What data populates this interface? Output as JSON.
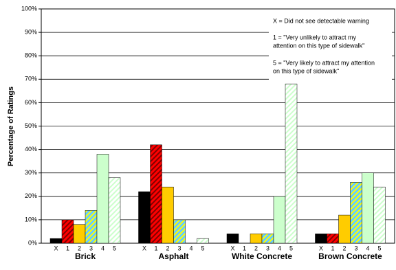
{
  "chart_data": {
    "type": "bar",
    "y_label": "Percentage of Ratings",
    "categories": [
      "Brick",
      "Asphalt",
      "White Concrete",
      "Brown Concrete"
    ],
    "series": [
      {
        "name": "X",
        "color": "#000000",
        "values": [
          2,
          22,
          4,
          4
        ]
      },
      {
        "name": "1",
        "color": "#ff0000",
        "hatch": "#800000",
        "values": [
          10,
          42,
          0,
          4
        ]
      },
      {
        "name": "2",
        "color": "#ffcc00",
        "values": [
          8,
          24,
          4,
          12
        ]
      },
      {
        "name": "3",
        "color": "#66ccff",
        "hatch": "#ffff00",
        "values": [
          14,
          10,
          4,
          26
        ]
      },
      {
        "name": "4",
        "color": "#ccffcc",
        "values": [
          38,
          0,
          20,
          30
        ]
      },
      {
        "name": "5",
        "color": "#ffffff",
        "hatch": "#ccffcc",
        "values": [
          28,
          2,
          68,
          24
        ]
      }
    ],
    "ylim": [
      0,
      100
    ],
    "yticks": [
      {
        "value": 0,
        "label": "0%"
      },
      {
        "value": 10,
        "label": "10%"
      },
      {
        "value": 20,
        "label": "20%"
      },
      {
        "value": 30,
        "label": "30%"
      },
      {
        "value": 40,
        "label": "40%"
      },
      {
        "value": 50,
        "label": "50%"
      },
      {
        "value": 60,
        "label": "60%"
      },
      {
        "value": 70,
        "label": "70%"
      },
      {
        "value": 80,
        "label": "80%"
      },
      {
        "value": 90,
        "label": "90%"
      },
      {
        "value": 100,
        "label": "100%"
      }
    ],
    "grid": true,
    "annotations": [
      [
        "X = Did not see detectable warning"
      ],
      [
        "1 = \"Very unlikely to attract my",
        "attention on this type of sidewalk\""
      ],
      [
        "5 = \"Very likely to attract my attention",
        "on this type of sidewalk\""
      ]
    ]
  }
}
